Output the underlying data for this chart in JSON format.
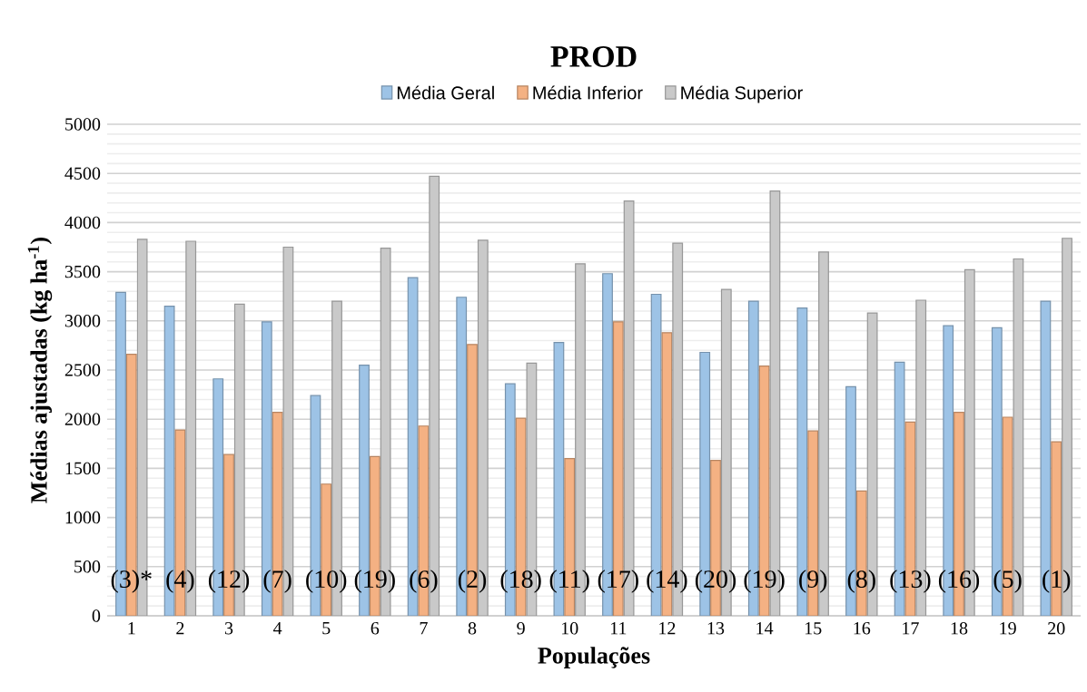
{
  "chart_data": {
    "type": "bar",
    "title": "PROD",
    "xlabel": "Populações",
    "ylabel": "Médias ajustadas (kg ha$^{-1}$)",
    "categories": [
      "1",
      "2",
      "3",
      "4",
      "5",
      "6",
      "7",
      "8",
      "9",
      "10",
      "11",
      "12",
      "13",
      "14",
      "15",
      "16",
      "17",
      "18",
      "19",
      "20"
    ],
    "series": [
      {
        "name": "Média Geral",
        "color": "#9dc3e6",
        "values": [
          3290,
          3150,
          2410,
          2990,
          2240,
          2550,
          3440,
          3240,
          2360,
          2780,
          3480,
          3270,
          2680,
          3200,
          3130,
          2330,
          2580,
          2950,
          2930,
          3200
        ]
      },
      {
        "name": "Média Inferior",
        "color": "#f4b183",
        "values": [
          2660,
          1890,
          1640,
          2070,
          1340,
          1620,
          1930,
          2760,
          2010,
          1600,
          2990,
          2880,
          1580,
          2540,
          1880,
          1270,
          1970,
          2070,
          2020,
          1770
        ]
      },
      {
        "name": "Média Superior",
        "color": "#c9c9c9",
        "values": [
          3830,
          3810,
          3170,
          3750,
          3200,
          3740,
          4470,
          3820,
          2570,
          3580,
          4220,
          3790,
          3320,
          4320,
          3700,
          3080,
          3210,
          3520,
          3630,
          3840
        ]
      }
    ],
    "ylim": [
      0,
      5000
    ],
    "yticks": [
      0,
      500,
      1000,
      1500,
      2000,
      2500,
      3000,
      3500,
      4000,
      4500,
      5000
    ],
    "grid": "y",
    "legend": "top",
    "annotations": [
      {
        "text": "(3)*",
        "x": "1",
        "y": 350
      },
      {
        "text": "(4)",
        "x": "2",
        "y": 350
      },
      {
        "text": "(12)",
        "x": "3",
        "y": 350
      },
      {
        "text": "(7)",
        "x": "4",
        "y": 350
      },
      {
        "text": "(10)",
        "x": "5",
        "y": 350
      },
      {
        "text": "(19)",
        "x": "6",
        "y": 350
      },
      {
        "text": "(6)",
        "x": "7",
        "y": 350
      },
      {
        "text": "(2)",
        "x": "8",
        "y": 350
      },
      {
        "text": "(18)",
        "x": "9",
        "y": 350
      },
      {
        "text": "(11)",
        "x": "10",
        "y": 350
      },
      {
        "text": "(17)",
        "x": "11",
        "y": 350
      },
      {
        "text": "(14)",
        "x": "12",
        "y": 350
      },
      {
        "text": "(20)",
        "x": "13",
        "y": 350
      },
      {
        "text": "(19)",
        "x": "14",
        "y": 350
      },
      {
        "text": "(9)",
        "x": "15",
        "y": 350
      },
      {
        "text": "(8)",
        "x": "16",
        "y": 350
      },
      {
        "text": "(13)",
        "x": "17",
        "y": 350
      },
      {
        "text": "(16)",
        "x": "18",
        "y": 350
      },
      {
        "text": "(5)",
        "x": "19",
        "y": 350
      },
      {
        "text": "(1)",
        "x": "20",
        "y": 350
      }
    ]
  }
}
